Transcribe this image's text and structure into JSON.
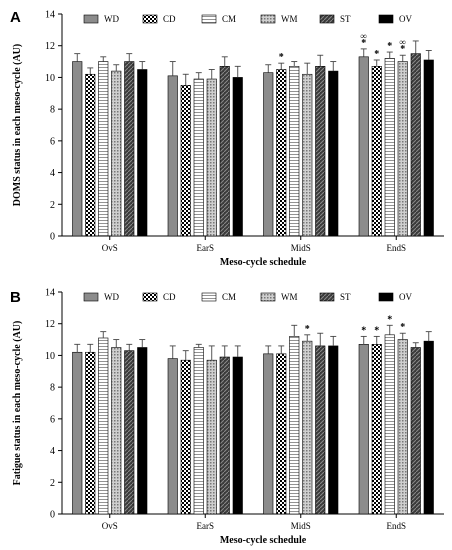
{
  "chart_data": [
    {
      "type": "bar",
      "panel": "A",
      "ylabel": "DOMS status in each meso-cycle (AU)",
      "xlabel": "Meso-cycle schedule",
      "ylim": [
        0,
        14
      ],
      "yticks": [
        0,
        2,
        4,
        6,
        8,
        10,
        12,
        14
      ],
      "categories": [
        "OvS",
        "EarS",
        "MidS",
        "EndS"
      ],
      "legend_position": "top",
      "series": [
        {
          "name": "WD",
          "pattern": "solid-gray",
          "values": [
            11.0,
            10.1,
            10.3,
            11.3
          ],
          "errors": [
            0.5,
            0.9,
            0.5,
            0.5
          ]
        },
        {
          "name": "CD",
          "pattern": "checker",
          "values": [
            10.2,
            9.5,
            10.5,
            10.7
          ],
          "errors": [
            0.4,
            0.7,
            0.4,
            0.4
          ]
        },
        {
          "name": "CM",
          "pattern": "horizontal-lines",
          "values": [
            11.0,
            9.9,
            10.7,
            11.2
          ],
          "errors": [
            0.3,
            0.4,
            0.3,
            0.4
          ]
        },
        {
          "name": "WM",
          "pattern": "grid-dots",
          "values": [
            10.4,
            9.9,
            10.2,
            11.0
          ],
          "errors": [
            0.4,
            0.6,
            0.7,
            0.4
          ]
        },
        {
          "name": "ST",
          "pattern": "diagonal-dark",
          "values": [
            11.0,
            10.7,
            10.7,
            11.5
          ],
          "errors": [
            0.5,
            0.6,
            0.7,
            0.8
          ]
        },
        {
          "name": "OV",
          "pattern": "solid-black",
          "values": [
            10.5,
            10.0,
            10.4,
            11.1
          ],
          "errors": [
            0.5,
            0.7,
            0.6,
            0.6
          ]
        }
      ],
      "annotations": [
        {
          "category": "MidS",
          "series": "CD",
          "text": "*"
        },
        {
          "category": "EndS",
          "series": "WD",
          "text": "*"
        },
        {
          "category": "EndS",
          "series": "WD",
          "text": "∞"
        },
        {
          "category": "EndS",
          "series": "CD",
          "text": "*"
        },
        {
          "category": "EndS",
          "series": "CM",
          "text": "*"
        },
        {
          "category": "EndS",
          "series": "WM",
          "text": "*"
        },
        {
          "category": "EndS",
          "series": "WM",
          "text": "∞"
        }
      ]
    },
    {
      "type": "bar",
      "panel": "B",
      "ylabel": "Fatigue status in each meso-cycle (AU)",
      "xlabel": "Meso-cycle schedule",
      "ylim": [
        0,
        14
      ],
      "yticks": [
        0,
        2,
        4,
        6,
        8,
        10,
        12,
        14
      ],
      "categories": [
        "OvS",
        "EarS",
        "MidS",
        "EndS"
      ],
      "legend_position": "top",
      "series": [
        {
          "name": "WD",
          "pattern": "solid-gray",
          "values": [
            10.2,
            9.8,
            10.1,
            10.7
          ],
          "errors": [
            0.5,
            0.8,
            0.5,
            0.5
          ]
        },
        {
          "name": "CD",
          "pattern": "checker",
          "values": [
            10.2,
            9.7,
            10.1,
            10.7
          ],
          "errors": [
            0.5,
            0.6,
            0.5,
            0.5
          ]
        },
        {
          "name": "CM",
          "pattern": "horizontal-lines",
          "values": [
            11.1,
            10.5,
            11.2,
            11.3
          ],
          "errors": [
            0.4,
            0.2,
            0.7,
            0.6
          ]
        },
        {
          "name": "WM",
          "pattern": "grid-dots",
          "values": [
            10.5,
            9.7,
            10.9,
            11.0
          ],
          "errors": [
            0.5,
            0.9,
            0.4,
            0.4
          ]
        },
        {
          "name": "ST",
          "pattern": "diagonal-dark",
          "values": [
            10.3,
            9.9,
            10.6,
            10.5
          ],
          "errors": [
            0.4,
            0.7,
            0.8,
            0.3
          ]
        },
        {
          "name": "OV",
          "pattern": "solid-black",
          "values": [
            10.5,
            9.9,
            10.6,
            10.9
          ],
          "errors": [
            0.5,
            0.7,
            0.6,
            0.6
          ]
        }
      ],
      "annotations": [
        {
          "category": "MidS",
          "series": "WM",
          "text": "*"
        },
        {
          "category": "EndS",
          "series": "WD",
          "text": "*"
        },
        {
          "category": "EndS",
          "series": "CD",
          "text": "*"
        },
        {
          "category": "EndS",
          "series": "CM",
          "text": "*"
        },
        {
          "category": "EndS",
          "series": "WM",
          "text": "*"
        }
      ]
    }
  ]
}
